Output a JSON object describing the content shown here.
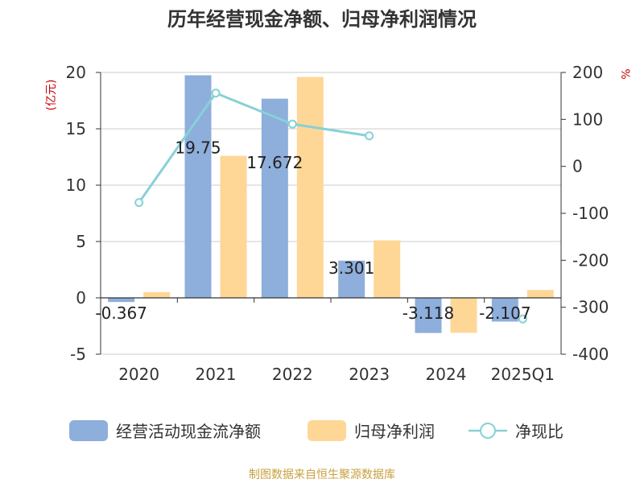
{
  "chart_data": {
    "type": "bar",
    "title": "历年经营现金净额、归母净利润情况",
    "categories": [
      "2020",
      "2021",
      "2022",
      "2023",
      "2024",
      "2025Q1"
    ],
    "series": [
      {
        "name": "经营活动现金流净额",
        "axis": "left",
        "type": "bar",
        "color": "#8eaedb",
        "values": [
          -0.367,
          19.75,
          17.672,
          3.301,
          -3.118,
          -2.107
        ],
        "labels": [
          "-0.367",
          "19.75",
          "17.672",
          "3.301",
          "-3.118",
          "-2.107"
        ]
      },
      {
        "name": "归母净利润",
        "axis": "left",
        "type": "bar",
        "color": "#fed797",
        "values": [
          0.5,
          12.6,
          19.6,
          5.1,
          -3.1,
          0.7
        ]
      },
      {
        "name": "净现比",
        "axis": "right",
        "type": "line",
        "color": "#87d1d6",
        "values": [
          -77,
          156,
          90,
          65,
          null,
          -325
        ]
      }
    ],
    "y_left": {
      "label": "(亿元)",
      "min": -5,
      "max": 20,
      "ticks": [
        -5,
        0,
        5,
        10,
        15,
        20
      ]
    },
    "y_right": {
      "label": "%",
      "min": -400,
      "max": 200,
      "ticks": [
        -400,
        -300,
        -200,
        -100,
        0,
        100,
        200
      ]
    },
    "source": "制图数据来自恒生聚源数据库"
  }
}
